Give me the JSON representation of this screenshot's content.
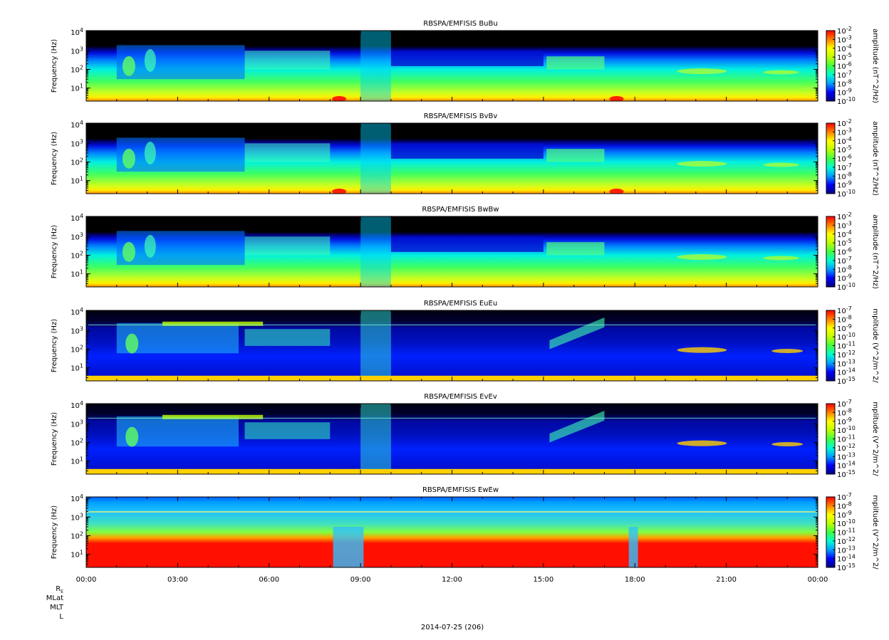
{
  "chart_data": {
    "type": "heatmap",
    "x_axis": {
      "tick_labels": [
        "00:00",
        "03:00",
        "06:00",
        "09:00",
        "12:00",
        "15:00",
        "18:00",
        "21:00",
        "00:00"
      ],
      "range_hours": [
        0,
        24
      ],
      "label": "2014-07-25 (206)"
    },
    "ephemeris_labels": [
      "MLat",
      "MLT",
      "L"
    ],
    "re_label": {
      "base": "R",
      "sub": "E"
    },
    "panels": [
      {
        "title": "RBSPA/EMFISIS  BuBu",
        "ylabel": "Frequency (Hz)",
        "yscale": "log",
        "ylim": [
          2,
          12000
        ],
        "y_ticks": [
          {
            "base": "10",
            "exp": "1"
          },
          {
            "base": "10",
            "exp": "2"
          },
          {
            "base": "10",
            "exp": "3"
          },
          {
            "base": "10",
            "exp": "4"
          }
        ],
        "colorbar": {
          "label": "amplitude (nT^2/Hz)",
          "scale": "log",
          "ticks": [
            {
              "base": "10",
              "exp": "-2"
            },
            {
              "base": "10",
              "exp": "-3"
            },
            {
              "base": "10",
              "exp": "-4"
            },
            {
              "base": "10",
              "exp": "-5"
            },
            {
              "base": "10",
              "exp": "-6"
            },
            {
              "base": "10",
              "exp": "-7"
            },
            {
              "base": "10",
              "exp": "-8"
            },
            {
              "base": "10",
              "exp": "-9"
            },
            {
              "base": "10",
              "exp": "-10"
            }
          ]
        }
      },
      {
        "title": "RBSPA/EMFISIS  BvBv",
        "ylabel": "Frequency (Hz)",
        "yscale": "log",
        "ylim": [
          2,
          12000
        ],
        "y_ticks": [
          {
            "base": "10",
            "exp": "1"
          },
          {
            "base": "10",
            "exp": "2"
          },
          {
            "base": "10",
            "exp": "3"
          },
          {
            "base": "10",
            "exp": "4"
          }
        ],
        "colorbar": {
          "label": "amplitude (nT^2/Hz)",
          "scale": "log",
          "ticks": [
            {
              "base": "10",
              "exp": "-2"
            },
            {
              "base": "10",
              "exp": "-3"
            },
            {
              "base": "10",
              "exp": "-4"
            },
            {
              "base": "10",
              "exp": "-5"
            },
            {
              "base": "10",
              "exp": "-6"
            },
            {
              "base": "10",
              "exp": "-7"
            },
            {
              "base": "10",
              "exp": "-8"
            },
            {
              "base": "10",
              "exp": "-9"
            },
            {
              "base": "10",
              "exp": "-10"
            }
          ]
        }
      },
      {
        "title": "RBSPA/EMFISIS  BwBw",
        "ylabel": "Frequency (Hz)",
        "yscale": "log",
        "ylim": [
          2,
          12000
        ],
        "y_ticks": [
          {
            "base": "10",
            "exp": "1"
          },
          {
            "base": "10",
            "exp": "2"
          },
          {
            "base": "10",
            "exp": "3"
          },
          {
            "base": "10",
            "exp": "4"
          }
        ],
        "colorbar": {
          "label": "amplitude (nT^2/Hz)",
          "scale": "log",
          "ticks": [
            {
              "base": "10",
              "exp": "-2"
            },
            {
              "base": "10",
              "exp": "-3"
            },
            {
              "base": "10",
              "exp": "-4"
            },
            {
              "base": "10",
              "exp": "-5"
            },
            {
              "base": "10",
              "exp": "-6"
            },
            {
              "base": "10",
              "exp": "-7"
            },
            {
              "base": "10",
              "exp": "-8"
            },
            {
              "base": "10",
              "exp": "-9"
            },
            {
              "base": "10",
              "exp": "-10"
            }
          ]
        }
      },
      {
        "title": "RBSPA/EMFISIS  EuEu",
        "ylabel": "Frequency (Hz)",
        "yscale": "log",
        "ylim": [
          2,
          12000
        ],
        "y_ticks": [
          {
            "base": "10",
            "exp": "1"
          },
          {
            "base": "10",
            "exp": "2"
          },
          {
            "base": "10",
            "exp": "3"
          },
          {
            "base": "10",
            "exp": "4"
          }
        ],
        "colorbar": {
          "label": "mplitude (V^2/m^2/",
          "scale": "log",
          "ticks": [
            {
              "base": "10",
              "exp": "-7"
            },
            {
              "base": "10",
              "exp": "-8"
            },
            {
              "base": "10",
              "exp": "-9"
            },
            {
              "base": "10",
              "exp": "-10"
            },
            {
              "base": "10",
              "exp": "-11"
            },
            {
              "base": "10",
              "exp": "-12"
            },
            {
              "base": "10",
              "exp": "-13"
            },
            {
              "base": "10",
              "exp": "-14"
            },
            {
              "base": "10",
              "exp": "-15"
            }
          ]
        }
      },
      {
        "title": "RBSPA/EMFISIS  EvEv",
        "ylabel": "Frequency (Hz)",
        "yscale": "log",
        "ylim": [
          2,
          12000
        ],
        "y_ticks": [
          {
            "base": "10",
            "exp": "1"
          },
          {
            "base": "10",
            "exp": "2"
          },
          {
            "base": "10",
            "exp": "3"
          },
          {
            "base": "10",
            "exp": "4"
          }
        ],
        "colorbar": {
          "label": "mplitude (V^2/m^2/",
          "scale": "log",
          "ticks": [
            {
              "base": "10",
              "exp": "-7"
            },
            {
              "base": "10",
              "exp": "-8"
            },
            {
              "base": "10",
              "exp": "-9"
            },
            {
              "base": "10",
              "exp": "-10"
            },
            {
              "base": "10",
              "exp": "-11"
            },
            {
              "base": "10",
              "exp": "-12"
            },
            {
              "base": "10",
              "exp": "-13"
            },
            {
              "base": "10",
              "exp": "-14"
            },
            {
              "base": "10",
              "exp": "-15"
            }
          ]
        }
      },
      {
        "title": "RBSPA/EMFISIS  EwEw",
        "ylabel": "Frequency (Hz)",
        "yscale": "log",
        "ylim": [
          2,
          12000
        ],
        "y_ticks": [
          {
            "base": "10",
            "exp": "1"
          },
          {
            "base": "10",
            "exp": "2"
          },
          {
            "base": "10",
            "exp": "3"
          },
          {
            "base": "10",
            "exp": "4"
          }
        ],
        "colorbar": {
          "label": "mplitude (V^2/m^2/",
          "scale": "log",
          "ticks": [
            {
              "base": "10",
              "exp": "-7"
            },
            {
              "base": "10",
              "exp": "-8"
            },
            {
              "base": "10",
              "exp": "-9"
            },
            {
              "base": "10",
              "exp": "-10"
            },
            {
              "base": "10",
              "exp": "-11"
            },
            {
              "base": "10",
              "exp": "-12"
            },
            {
              "base": "10",
              "exp": "-13"
            },
            {
              "base": "10",
              "exp": "-14"
            },
            {
              "base": "10",
              "exp": "-15"
            }
          ]
        }
      }
    ],
    "colormap": [
      "#000080",
      "#0000ff",
      "#00a0ff",
      "#00ffd0",
      "#40ff40",
      "#c0ff00",
      "#ffff00",
      "#ff8000",
      "#ff0000"
    ]
  }
}
